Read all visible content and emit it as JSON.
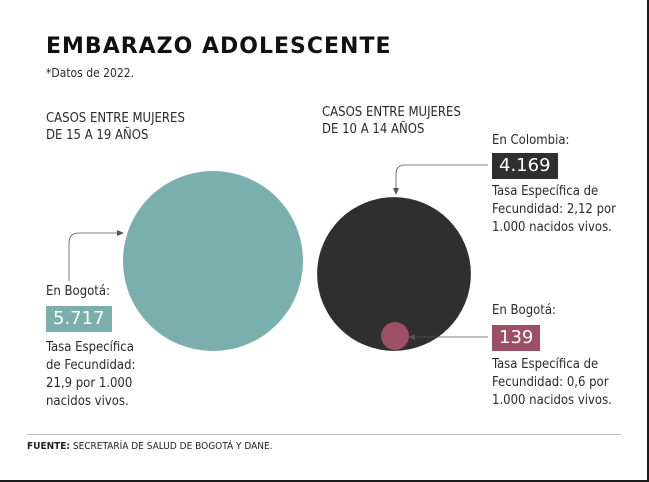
{
  "header": {
    "title": "EMBARAZO ADOLESCENTE",
    "subtitle": "*Datos de 2022."
  },
  "left_group": {
    "heading_line1": "CASOS ENTRE MUJERES",
    "heading_line2": "DE 15 A 19 AÑOS",
    "location": "En Bogotá:",
    "value": "5.717",
    "desc_line1": "Tasa Específica",
    "desc_line2": "de Fecundidad:",
    "desc_line3": "21,9 por 1.000",
    "desc_line4": "nacidos vivos."
  },
  "right_group": {
    "heading_line1": "CASOS ENTRE MUJERES",
    "heading_line2": "DE 10 A 14 AÑOS",
    "colombia_location": "En Colombia:",
    "colombia_value": "4.169",
    "colombia_desc_line1": "Tasa Específica de",
    "colombia_desc_line2": "Fecundidad: 2,12 por",
    "colombia_desc_line3": "1.000 nacidos vivos.",
    "bogota_location": "En Bogotá:",
    "bogota_value": "139",
    "bogota_desc_line1": "Tasa Específica de",
    "bogota_desc_line2": "Fecundidad: 0,6 por",
    "bogota_desc_line3": "1.000 nacidos vivos."
  },
  "footer": {
    "source_label": "FUENTE:",
    "source_text": " SECRETARÍA DE SALUD DE BOGOTÁ Y DANE."
  },
  "colors": {
    "teal": "#7aafae",
    "dark": "#2f2f2f",
    "maroon": "#9c4f66"
  },
  "chart_data": {
    "type": "bubble",
    "series": [
      {
        "group": "15-19",
        "location": "Bogotá",
        "cases": 5717,
        "rate_per_1000": 21.9
      },
      {
        "group": "10-14",
        "location": "Colombia",
        "cases": 4169,
        "rate_per_1000": 2.12
      },
      {
        "group": "10-14",
        "location": "Bogotá",
        "cases": 139,
        "rate_per_1000": 0.6
      }
    ]
  }
}
